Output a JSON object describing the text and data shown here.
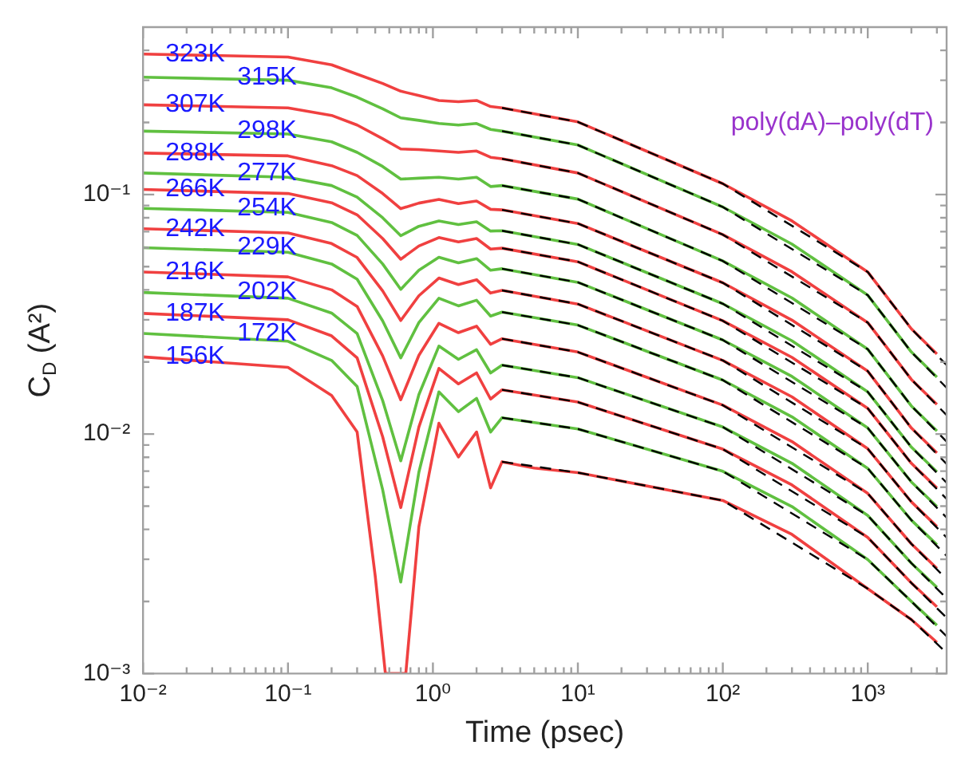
{
  "chart_data": {
    "type": "line",
    "xlabel": "Time (psec)",
    "ylabel": "C$_{D}$ (A²)",
    "log": "xy",
    "marker": "none",
    "legend": false,
    "annotations": [
      "poly(dA)–poly(dT)"
    ],
    "xlim": [
      0.01,
      3500
    ],
    "ylim": [
      0.001,
      0.5
    ],
    "xticks": [
      {
        "value": 0.01,
        "label": "10⁻²"
      },
      {
        "value": 0.02,
        "label": null
      },
      {
        "value": 0.03,
        "label": null
      },
      {
        "value": 0.04,
        "label": null
      },
      {
        "value": 0.05,
        "label": null
      },
      {
        "value": 0.06,
        "label": null
      },
      {
        "value": 0.07,
        "label": null
      },
      {
        "value": 0.08,
        "label": null
      },
      {
        "value": 0.09,
        "label": null
      },
      {
        "value": 0.1,
        "label": "10⁻¹"
      },
      {
        "value": 0.2,
        "label": null
      },
      {
        "value": 0.3,
        "label": null
      },
      {
        "value": 0.4,
        "label": null
      },
      {
        "value": 0.5,
        "label": null
      },
      {
        "value": 0.6,
        "label": null
      },
      {
        "value": 0.7,
        "label": null
      },
      {
        "value": 0.8,
        "label": null
      },
      {
        "value": 0.9,
        "label": null
      },
      {
        "value": 1,
        "label": "10⁰"
      },
      {
        "value": 2,
        "label": null
      },
      {
        "value": 3,
        "label": null
      },
      {
        "value": 4,
        "label": null
      },
      {
        "value": 5,
        "label": null
      },
      {
        "value": 6,
        "label": null
      },
      {
        "value": 7,
        "label": null
      },
      {
        "value": 8,
        "label": null
      },
      {
        "value": 9,
        "label": null
      },
      {
        "value": 10,
        "label": "10¹"
      },
      {
        "value": 20,
        "label": null
      },
      {
        "value": 30,
        "label": null
      },
      {
        "value": 40,
        "label": null
      },
      {
        "value": 50,
        "label": null
      },
      {
        "value": 60,
        "label": null
      },
      {
        "value": 70,
        "label": null
      },
      {
        "value": 80,
        "label": null
      },
      {
        "value": 90,
        "label": null
      },
      {
        "value": 100,
        "label": "10²"
      },
      {
        "value": 200,
        "label": null
      },
      {
        "value": 300,
        "label": null
      },
      {
        "value": 400,
        "label": null
      },
      {
        "value": 500,
        "label": null
      },
      {
        "value": 600,
        "label": null
      },
      {
        "value": 700,
        "label": null
      },
      {
        "value": 800,
        "label": null
      },
      {
        "value": 900,
        "label": null
      },
      {
        "value": 1000,
        "label": "10³"
      },
      {
        "value": 2000,
        "label": null
      },
      {
        "value": 3000,
        "label": null
      }
    ],
    "yticks": [
      {
        "value": 0.001,
        "label": "10⁻³"
      },
      {
        "value": 0.002,
        "label": null
      },
      {
        "value": 0.003,
        "label": null
      },
      {
        "value": 0.004,
        "label": null
      },
      {
        "value": 0.005,
        "label": null
      },
      {
        "value": 0.006,
        "label": null
      },
      {
        "value": 0.007,
        "label": null
      },
      {
        "value": 0.008,
        "label": null
      },
      {
        "value": 0.009,
        "label": null
      },
      {
        "value": 0.01,
        "label": "10⁻²"
      },
      {
        "value": 0.02,
        "label": null
      },
      {
        "value": 0.03,
        "label": null
      },
      {
        "value": 0.04,
        "label": null
      },
      {
        "value": 0.05,
        "label": null
      },
      {
        "value": 0.06,
        "label": null
      },
      {
        "value": 0.07,
        "label": null
      },
      {
        "value": 0.08,
        "label": null
      },
      {
        "value": 0.09,
        "label": null
      },
      {
        "value": 0.1,
        "label": "10⁻¹"
      },
      {
        "value": 0.2,
        "label": null
      },
      {
        "value": 0.3,
        "label": null
      },
      {
        "value": 0.4,
        "label": null
      }
    ],
    "x": [
      0.01,
      0.1,
      0.2,
      0.3,
      0.45,
      0.6,
      0.8,
      1.1,
      1.5,
      2,
      2.5,
      3,
      10,
      100,
      300,
      1000,
      2000,
      3000
    ],
    "series": [
      {
        "name": "323K",
        "color": "#f04040",
        "values": [
          0.386,
          0.375,
          0.348,
          0.318,
          0.291,
          0.27,
          0.259,
          0.247,
          0.244,
          0.247,
          0.233,
          0.23,
          0.201,
          0.111,
          0.0776,
          0.0475,
          0.0275,
          0.0216
        ]
      },
      {
        "name": "315K",
        "color": "#60c040",
        "values": [
          0.309,
          0.3,
          0.279,
          0.255,
          0.228,
          0.209,
          0.204,
          0.198,
          0.195,
          0.198,
          0.187,
          0.184,
          0.161,
          0.0887,
          0.0621,
          0.038,
          0.022,
          0.0173
        ]
      },
      {
        "name": "307K",
        "color": "#f04040",
        "values": [
          0.237,
          0.23,
          0.214,
          0.195,
          0.171,
          0.155,
          0.154,
          0.152,
          0.15,
          0.152,
          0.143,
          0.141,
          0.123,
          0.068,
          0.0476,
          0.0292,
          0.0169,
          0.0133
        ]
      },
      {
        "name": "298K",
        "color": "#60c040",
        "values": [
          0.184,
          0.179,
          0.166,
          0.15,
          0.131,
          0.116,
          0.117,
          0.118,
          0.116,
          0.118,
          0.108,
          0.109,
          0.0957,
          0.0528,
          0.037,
          0.0226,
          0.0131,
          0.0103
        ]
      },
      {
        "name": "288K",
        "color": "#f04040",
        "values": [
          0.149,
          0.145,
          0.132,
          0.12,
          0.101,
          0.0873,
          0.0921,
          0.0954,
          0.0917,
          0.094,
          0.0868,
          0.0863,
          0.0757,
          0.0428,
          0.0299,
          0.0183,
          0.0106,
          0.00834
        ]
      },
      {
        "name": "277K",
        "color": "#60c040",
        "values": [
          0.123,
          0.118,
          0.109,
          0.0975,
          0.08,
          0.0673,
          0.0737,
          0.0776,
          0.0749,
          0.077,
          0.0704,
          0.0706,
          0.0619,
          0.035,
          0.0245,
          0.015,
          0.00882,
          0.00695
        ]
      },
      {
        "name": "266K",
        "color": "#f04040",
        "values": [
          0.105,
          0.101,
          0.0924,
          0.0823,
          0.0655,
          0.0537,
          0.061,
          0.0661,
          0.0634,
          0.0655,
          0.0592,
          0.0597,
          0.0524,
          0.0297,
          0.0209,
          0.0128,
          0.00755,
          0.00595
        ]
      },
      {
        "name": "254K",
        "color": "#60c040",
        "values": [
          0.0875,
          0.0842,
          0.0764,
          0.0675,
          0.0513,
          0.0402,
          0.0483,
          0.0547,
          0.0519,
          0.054,
          0.0483,
          0.049,
          0.043,
          0.0247,
          0.0174,
          0.0106,
          0.00631,
          0.00498
        ]
      },
      {
        "name": "242K",
        "color": "#f04040",
        "values": [
          0.072,
          0.0691,
          0.0624,
          0.0546,
          0.0396,
          0.0298,
          0.0378,
          0.0448,
          0.0421,
          0.0441,
          0.0388,
          0.0398,
          0.0349,
          0.0203,
          0.0143,
          0.00868,
          0.00521,
          0.00411
        ]
      },
      {
        "name": "229K",
        "color": "#60c040",
        "values": [
          0.06,
          0.0574,
          0.0513,
          0.0443,
          0.0297,
          0.0208,
          0.0292,
          0.0369,
          0.0343,
          0.0362,
          0.0311,
          0.0323,
          0.0285,
          0.0168,
          0.0118,
          0.00719,
          0.00437,
          0.00345
        ]
      },
      {
        "name": "216K",
        "color": "#f04040",
        "values": [
          0.0475,
          0.0453,
          0.04,
          0.0341,
          0.0212,
          0.0139,
          0.0213,
          0.029,
          0.0265,
          0.0282,
          0.0237,
          0.025,
          0.022,
          0.0132,
          0.0093,
          0.00565,
          0.00348,
          0.00275
        ]
      },
      {
        "name": "202K",
        "color": "#60c040",
        "values": [
          0.039,
          0.0369,
          0.032,
          0.0263,
          0.0138,
          0.00773,
          0.0146,
          0.0233,
          0.0205,
          0.0225,
          0.018,
          0.0194,
          0.0172,
          0.0107,
          0.00755,
          0.00457,
          0.00289,
          0.00229
        ]
      },
      {
        "name": "187K",
        "color": "#f04040",
        "values": [
          0.0319,
          0.03,
          0.0257,
          0.0208,
          0.00975,
          0.00493,
          0.0107,
          0.0188,
          0.0162,
          0.018,
          0.014,
          0.0153,
          0.0136,
          0.00865,
          0.00613,
          0.0037,
          0.00239,
          0.0019
        ]
      },
      {
        "name": "172K",
        "color": "#60c040",
        "values": [
          0.0263,
          0.0244,
          0.0203,
          0.0158,
          0.00586,
          0.00241,
          0.00693,
          0.015,
          0.0124,
          0.0141,
          0.0102,
          0.0117,
          0.0105,
          0.00699,
          0.00498,
          0.00299,
          0.002,
          0.00159
        ]
      },
      {
        "name": "156K",
        "color": "#f04040",
        "x": [
          0.01,
          0.1,
          0.2,
          0.3,
          0.4,
          0.47,
          0.65,
          0.8,
          1.1,
          1.5,
          2,
          2.5,
          3,
          5,
          10,
          100,
          300,
          1000,
          2000,
          3000
        ],
        "values": [
          0.021,
          0.019,
          0.0145,
          0.0102,
          0.00255,
          0.001,
          0.001,
          0.0041,
          0.0111,
          0.00802,
          0.0102,
          0.00596,
          0.00766,
          0.00721,
          0.0069,
          0.00528,
          0.00381,
          0.00226,
          0.00168,
          0.00135
        ]
      },
      {
        "type": "line",
        "line_style": "dashed",
        "color": "#000000",
        "x": [
          3,
          10,
          100,
          1000,
          2000,
          3500
        ],
        "values": [
          0.23,
          0.201,
          0.111,
          0.0475,
          0.0275,
          0.0194
        ]
      },
      {
        "type": "line",
        "line_style": "dashed",
        "color": "#000000",
        "x": [
          3,
          10,
          100,
          1000,
          2000,
          3500
        ],
        "values": [
          0.184,
          0.161,
          0.0887,
          0.038,
          0.022,
          0.0156
        ]
      },
      {
        "type": "line",
        "line_style": "dashed",
        "color": "#000000",
        "x": [
          3,
          10,
          100,
          1000,
          2000,
          3500
        ],
        "values": [
          0.141,
          0.123,
          0.068,
          0.0292,
          0.0169,
          0.012
        ]
      },
      {
        "type": "line",
        "line_style": "dashed",
        "color": "#000000",
        "x": [
          3,
          10,
          100,
          1000,
          2000,
          3500
        ],
        "values": [
          0.109,
          0.0957,
          0.0528,
          0.0226,
          0.0131,
          0.0093
        ]
      },
      {
        "type": "line",
        "line_style": "dashed",
        "color": "#000000",
        "x": [
          3,
          10,
          100,
          1000,
          2000,
          3500
        ],
        "values": [
          0.0863,
          0.0757,
          0.0428,
          0.0183,
          0.0106,
          0.0075
        ]
      },
      {
        "type": "line",
        "line_style": "dashed",
        "color": "#000000",
        "x": [
          3,
          10,
          100,
          1000,
          2000,
          3500
        ],
        "values": [
          0.0706,
          0.0619,
          0.035,
          0.015,
          0.00882,
          0.00626
        ]
      },
      {
        "type": "line",
        "line_style": "dashed",
        "color": "#000000",
        "x": [
          3,
          10,
          100,
          1000,
          2000,
          3500
        ],
        "values": [
          0.0597,
          0.0524,
          0.0297,
          0.0128,
          0.00755,
          0.00536
        ]
      },
      {
        "type": "line",
        "line_style": "dashed",
        "color": "#000000",
        "x": [
          3,
          10,
          100,
          1000,
          2000,
          3500
        ],
        "values": [
          0.049,
          0.043,
          0.0247,
          0.0106,
          0.00631,
          0.00448
        ]
      },
      {
        "type": "line",
        "line_style": "dashed",
        "color": "#000000",
        "x": [
          3,
          10,
          100,
          1000,
          2000,
          3500
        ],
        "values": [
          0.0398,
          0.0349,
          0.0203,
          0.00868,
          0.00521,
          0.0037
        ]
      },
      {
        "type": "line",
        "line_style": "dashed",
        "color": "#000000",
        "x": [
          3,
          10,
          100,
          1000,
          2000,
          3500
        ],
        "values": [
          0.0323,
          0.0285,
          0.0168,
          0.00719,
          0.00437,
          0.0031
        ]
      },
      {
        "type": "line",
        "line_style": "dashed",
        "color": "#000000",
        "x": [
          3,
          10,
          100,
          1000,
          2000,
          3500
        ],
        "values": [
          0.025,
          0.022,
          0.0132,
          0.00565,
          0.00348,
          0.00248
        ]
      },
      {
        "type": "line",
        "line_style": "dashed",
        "color": "#000000",
        "x": [
          3,
          10,
          100,
          1000,
          2000,
          3500
        ],
        "values": [
          0.0194,
          0.0172,
          0.0107,
          0.00457,
          0.00289,
          0.00206
        ]
      },
      {
        "type": "line",
        "line_style": "dashed",
        "color": "#000000",
        "x": [
          3,
          10,
          100,
          1000,
          2000,
          3500
        ],
        "values": [
          0.0153,
          0.0136,
          0.00865,
          0.0037,
          0.00239,
          0.00171
        ]
      },
      {
        "type": "line",
        "line_style": "dashed",
        "color": "#000000",
        "x": [
          3,
          10,
          100,
          1000,
          2000,
          3500
        ],
        "values": [
          0.0117,
          0.0105,
          0.00699,
          0.00299,
          0.002,
          0.00143
        ]
      },
      {
        "type": "line",
        "line_style": "dashed",
        "color": "#000000",
        "x": [
          3,
          10,
          100,
          1000,
          2000,
          3500
        ],
        "values": [
          0.00766,
          0.0069,
          0.00528,
          0.00226,
          0.00168,
          0.00122
        ]
      }
    ]
  }
}
